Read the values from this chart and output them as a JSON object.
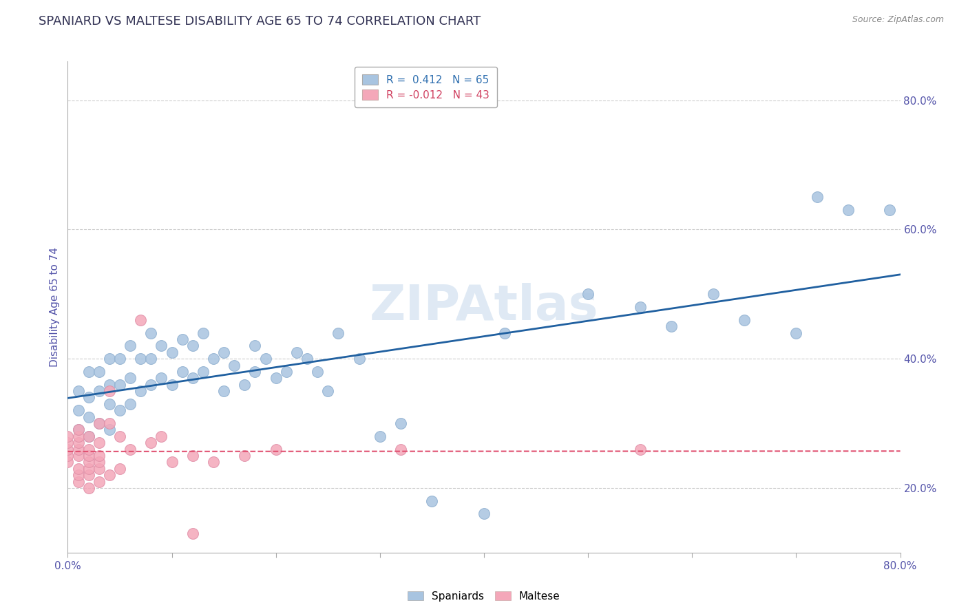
{
  "title": "SPANIARD VS MALTESE DISABILITY AGE 65 TO 74 CORRELATION CHART",
  "source": "Source: ZipAtlas.com",
  "ylabel": "Disability Age 65 to 74",
  "xlim": [
    0.0,
    0.8
  ],
  "ylim": [
    0.1,
    0.86
  ],
  "xticks": [
    0.0,
    0.1,
    0.2,
    0.3,
    0.4,
    0.5,
    0.6,
    0.7,
    0.8
  ],
  "xticklabels": [
    "0.0%",
    "",
    "",
    "",
    "",
    "",
    "",
    "",
    "80.0%"
  ],
  "yticks": [
    0.2,
    0.4,
    0.6,
    0.8
  ],
  "yticklabels": [
    "20.0%",
    "40.0%",
    "60.0%",
    "80.0%"
  ],
  "spaniard_color": "#a8c4e0",
  "maltese_color": "#f4a7b9",
  "spaniard_line_color": "#2060a0",
  "maltese_line_color": "#e05070",
  "watermark": "ZIPAtlas",
  "legend_R_spaniard": "0.412",
  "legend_N_spaniard": "65",
  "legend_R_maltese": "-0.012",
  "legend_N_maltese": "43",
  "spaniard_x": [
    0.01,
    0.01,
    0.01,
    0.02,
    0.02,
    0.02,
    0.02,
    0.03,
    0.03,
    0.03,
    0.04,
    0.04,
    0.04,
    0.04,
    0.05,
    0.05,
    0.05,
    0.06,
    0.06,
    0.06,
    0.07,
    0.07,
    0.08,
    0.08,
    0.08,
    0.09,
    0.09,
    0.1,
    0.1,
    0.11,
    0.11,
    0.12,
    0.12,
    0.13,
    0.13,
    0.14,
    0.15,
    0.15,
    0.16,
    0.17,
    0.18,
    0.18,
    0.19,
    0.2,
    0.21,
    0.22,
    0.23,
    0.24,
    0.25,
    0.26,
    0.28,
    0.3,
    0.32,
    0.35,
    0.4,
    0.42,
    0.5,
    0.55,
    0.58,
    0.62,
    0.65,
    0.7,
    0.72,
    0.75,
    0.79
  ],
  "spaniard_y": [
    0.29,
    0.32,
    0.35,
    0.28,
    0.31,
    0.34,
    0.38,
    0.3,
    0.35,
    0.38,
    0.29,
    0.33,
    0.36,
    0.4,
    0.32,
    0.36,
    0.4,
    0.33,
    0.37,
    0.42,
    0.35,
    0.4,
    0.36,
    0.4,
    0.44,
    0.37,
    0.42,
    0.36,
    0.41,
    0.38,
    0.43,
    0.37,
    0.42,
    0.38,
    0.44,
    0.4,
    0.35,
    0.41,
    0.39,
    0.36,
    0.38,
    0.42,
    0.4,
    0.37,
    0.38,
    0.41,
    0.4,
    0.38,
    0.35,
    0.44,
    0.4,
    0.28,
    0.3,
    0.18,
    0.16,
    0.44,
    0.5,
    0.48,
    0.45,
    0.5,
    0.46,
    0.44,
    0.65,
    0.63,
    0.63
  ],
  "maltese_x": [
    0.0,
    0.0,
    0.0,
    0.0,
    0.0,
    0.01,
    0.01,
    0.01,
    0.01,
    0.01,
    0.01,
    0.01,
    0.01,
    0.02,
    0.02,
    0.02,
    0.02,
    0.02,
    0.02,
    0.02,
    0.03,
    0.03,
    0.03,
    0.03,
    0.03,
    0.03,
    0.04,
    0.04,
    0.04,
    0.05,
    0.05,
    0.06,
    0.07,
    0.08,
    0.09,
    0.1,
    0.12,
    0.14,
    0.17,
    0.2,
    0.32,
    0.55,
    0.12
  ],
  "maltese_y": [
    0.24,
    0.25,
    0.26,
    0.27,
    0.28,
    0.21,
    0.22,
    0.23,
    0.25,
    0.26,
    0.27,
    0.28,
    0.29,
    0.2,
    0.22,
    0.23,
    0.24,
    0.25,
    0.26,
    0.28,
    0.21,
    0.23,
    0.24,
    0.25,
    0.27,
    0.3,
    0.22,
    0.3,
    0.35,
    0.23,
    0.28,
    0.26,
    0.46,
    0.27,
    0.28,
    0.24,
    0.25,
    0.24,
    0.25,
    0.26,
    0.26,
    0.26,
    0.13
  ]
}
